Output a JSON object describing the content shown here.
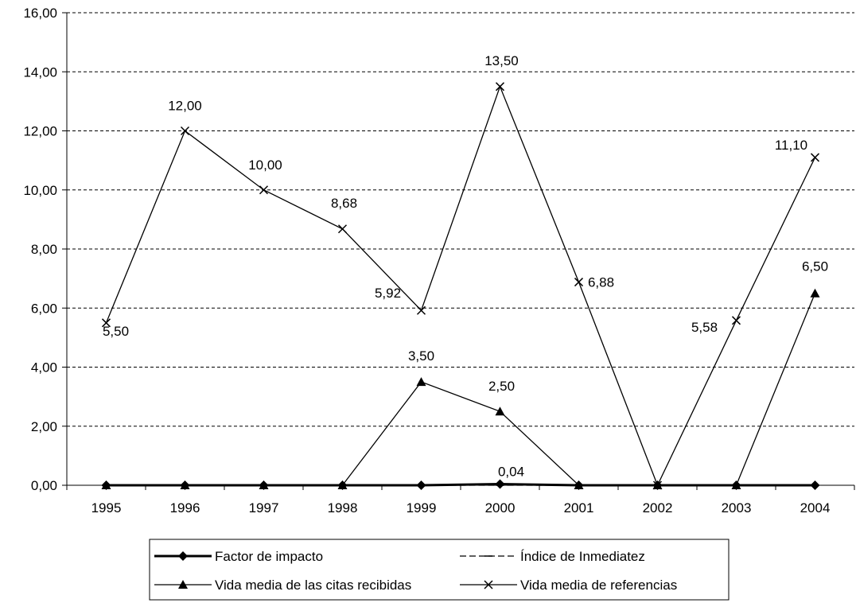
{
  "chart_data": {
    "type": "line",
    "categories": [
      "1995",
      "1996",
      "1997",
      "1998",
      "1999",
      "2000",
      "2001",
      "2002",
      "2003",
      "2004"
    ],
    "ylim": [
      0,
      16
    ],
    "ytick_labels": [
      "0,00",
      "2,00",
      "4,00",
      "6,00",
      "8,00",
      "10,00",
      "12,00",
      "14,00",
      "16,00"
    ],
    "grid": "horizontal dashed",
    "legend_position": "bottom",
    "series": [
      {
        "name": "Factor de impacto",
        "marker": "diamond",
        "line": "thick solid",
        "values": [
          0,
          0,
          0,
          0,
          0,
          0.04,
          0,
          0,
          0,
          0
        ],
        "labels": [
          "",
          "",
          "",
          "",
          "",
          "0,04",
          "",
          "",
          "",
          ""
        ]
      },
      {
        "name": "Índice de Inmediatez",
        "marker": "dash",
        "line": "dashed",
        "values": [
          0,
          0,
          0,
          0,
          0,
          0,
          0,
          0,
          0,
          0
        ],
        "labels": [
          "",
          "",
          "",
          "",
          "",
          "",
          "",
          "",
          "",
          ""
        ]
      },
      {
        "name": "Vida media de las citas recibidas",
        "marker": "triangle",
        "line": "solid",
        "values": [
          0,
          0,
          0,
          0,
          3.5,
          2.5,
          0,
          0,
          0,
          6.5
        ],
        "labels": [
          "",
          "",
          "",
          "",
          "3,50",
          "2,50",
          "",
          "",
          "",
          "6,50"
        ]
      },
      {
        "name": "Vida media de referencias",
        "marker": "x",
        "line": "solid",
        "values": [
          5.5,
          12,
          10,
          8.68,
          5.92,
          13.5,
          6.88,
          0,
          5.58,
          11.1
        ],
        "labels": [
          "5,50",
          "12,00",
          "10,00",
          "8,68",
          "5,92",
          "13,50",
          "6,88",
          "",
          "5,58",
          "11,10"
        ]
      }
    ]
  }
}
